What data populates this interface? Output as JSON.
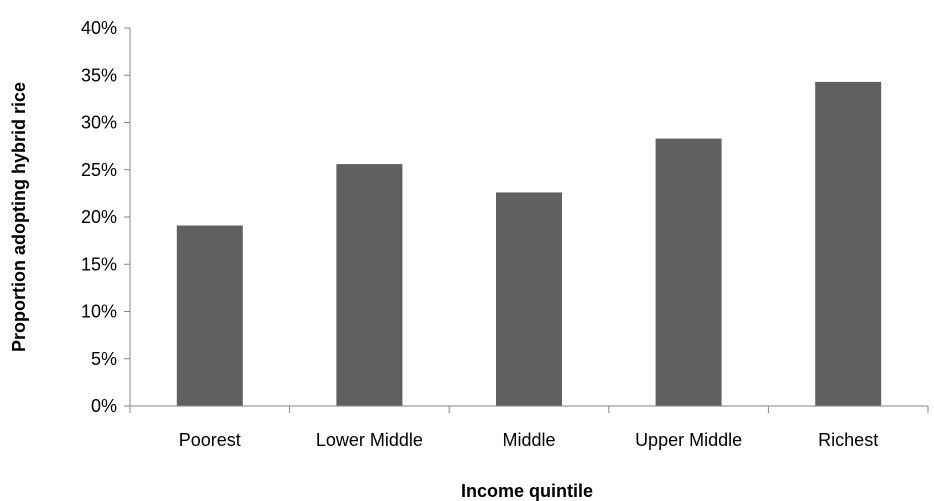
{
  "chart_data": {
    "type": "bar",
    "categories": [
      "Poorest",
      "Lower Middle",
      "Middle",
      "Upper Middle",
      "Richest"
    ],
    "values": [
      0.191,
      0.256,
      0.226,
      0.283,
      0.343
    ],
    "title": "",
    "xlabel": "Income quintile",
    "ylabel": "Proportion adopting hybrid rice",
    "ylim": [
      0,
      0.4
    ],
    "yticks": [
      0,
      0.05,
      0.1,
      0.15,
      0.2,
      0.25,
      0.3,
      0.35,
      0.4
    ],
    "ytick_labels": [
      "0%",
      "5%",
      "10%",
      "15%",
      "20%",
      "25%",
      "30%",
      "35%",
      "40%"
    ],
    "grid": false,
    "legend": "none",
    "bar_color": "#606060",
    "axis_color": "#868686"
  }
}
